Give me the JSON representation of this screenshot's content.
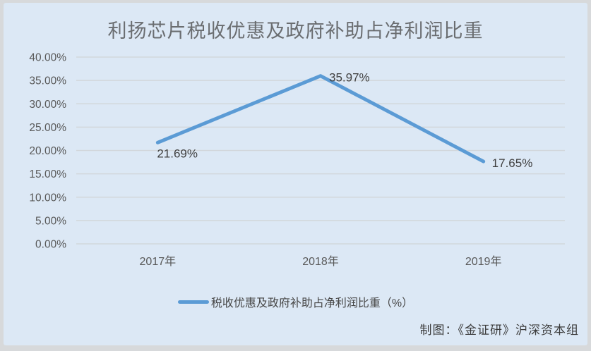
{
  "page": {
    "attribution": "制图：《金证研》沪深资本组"
  },
  "chart_data": {
    "type": "line",
    "title": "利扬芯片税收优惠及政府补助占净利润比重",
    "categories": [
      "2017年",
      "2018年",
      "2019年"
    ],
    "series": [
      {
        "name": "税收优惠及政府补助占净利润比重（%）",
        "values": [
          21.69,
          35.97,
          17.65
        ],
        "point_labels": [
          "21.69%",
          "35.97%",
          "17.65%"
        ],
        "label_positions": [
          "below",
          "right",
          "right"
        ]
      }
    ],
    "xlabel": "",
    "ylabel": "",
    "ylim": [
      0,
      40
    ],
    "ytick_step": 5,
    "yticks": [
      "0.00%",
      "5.00%",
      "10.00%",
      "15.00%",
      "20.00%",
      "25.00%",
      "30.00%",
      "35.00%",
      "40.00%"
    ],
    "grid": true,
    "legend_position": "bottom",
    "colors": {
      "panel_bg": "#dce8f5",
      "outer_bg": "#d7d9db",
      "gridline": "#d2d7db",
      "line": "#5b9bd5",
      "tick_text": "#595959",
      "label_text": "#3f3f3f"
    }
  }
}
